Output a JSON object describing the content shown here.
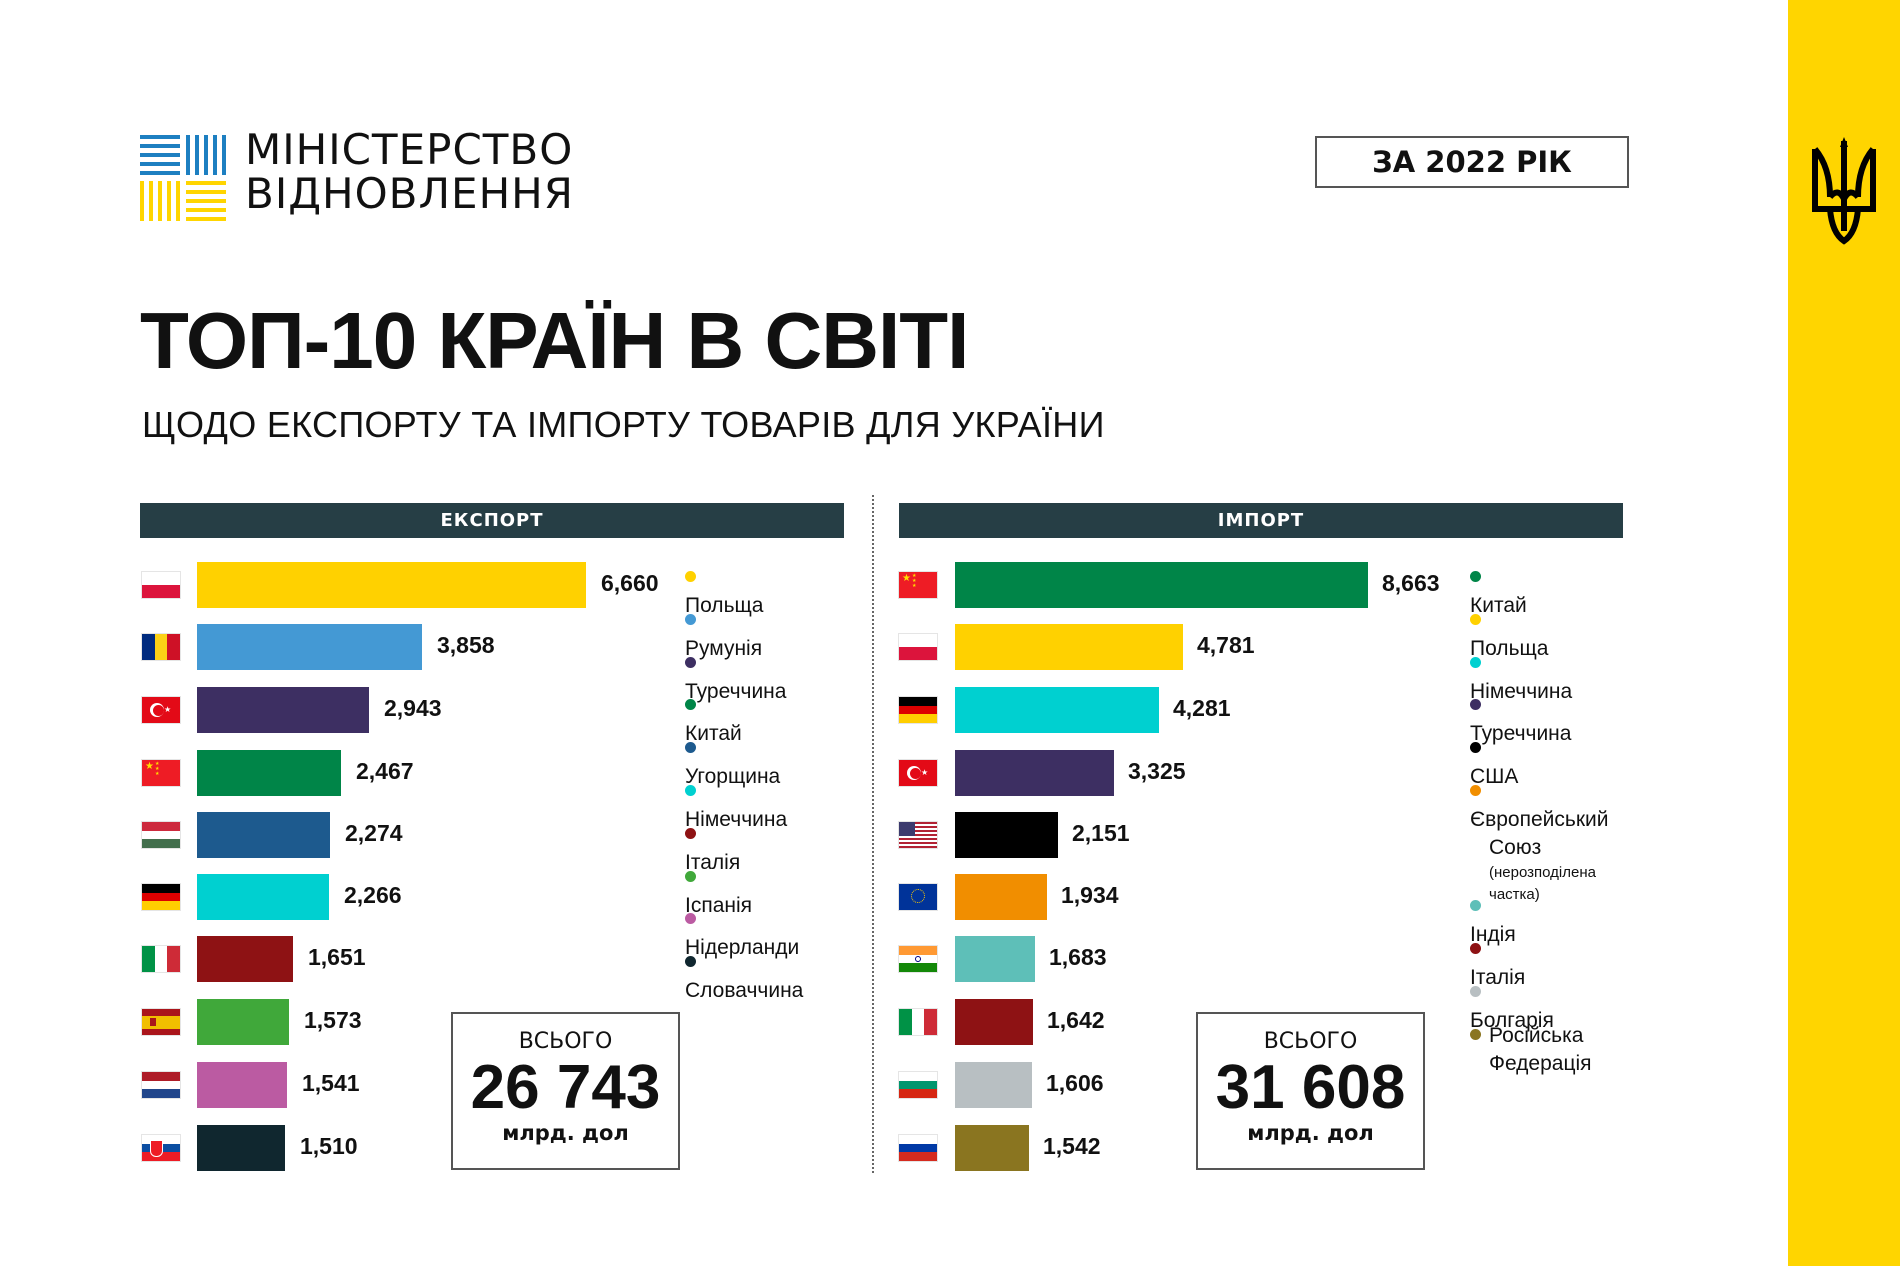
{
  "header": {
    "logo_line1": "МІНІСТЕРСТВО",
    "logo_line2": "ВІДНОВЛЕННЯ",
    "year_badge": "ЗА 2022 РІК",
    "title": "ТОП-10 КРАЇН В СВІТІ",
    "subtitle": "ЩОДО ЕКСПОРТУ ТА ІМПОРТУ ТОВАРІВ ДЛЯ УКРАЇНИ"
  },
  "colors": {
    "brand_yellow": "#FFD500",
    "brand_blue": "#1D7FC1",
    "header_bar": "#263E45"
  },
  "export": {
    "header": "ЕКСПОРТ",
    "total_label": "ВСЬОГО",
    "total_value": "26 743",
    "total_unit": "млрд. дол",
    "rows": [
      {
        "country": "Польща",
        "value": "6,660",
        "num": 6660,
        "color": "#FFD100",
        "flag": "poland"
      },
      {
        "country": "Румунія",
        "value": "3,858",
        "num": 3858,
        "color": "#4499D4",
        "flag": "romania"
      },
      {
        "country": "Туреччина",
        "value": "2,943",
        "num": 2943,
        "color": "#3D2F62",
        "flag": "turkey"
      },
      {
        "country": "Китай",
        "value": "2,467",
        "num": 2467,
        "color": "#008548",
        "flag": "china"
      },
      {
        "country": "Угорщина",
        "value": "2,274",
        "num": 2274,
        "color": "#1D5A8E",
        "flag": "hungary"
      },
      {
        "country": "Німеччина",
        "value": "2,266",
        "num": 2266,
        "color": "#00D0D0",
        "flag": "germany"
      },
      {
        "country": "Італія",
        "value": "1,651",
        "num": 1651,
        "color": "#8E1214",
        "flag": "italy"
      },
      {
        "country": "Іспанія",
        "value": "1,573",
        "num": 1573,
        "color": "#40A83A",
        "flag": "spain"
      },
      {
        "country": "Нідерланди",
        "value": "1,541",
        "num": 1541,
        "color": "#BB5BA2",
        "flag": "netherlands"
      },
      {
        "country": "Словаччина",
        "value": "1,510",
        "num": 1510,
        "color": "#10272F",
        "flag": "slovakia"
      }
    ]
  },
  "import": {
    "header": "ІМПОРТ",
    "total_label": "ВСЬОГО",
    "total_value": "31 608",
    "total_unit": "млрд. дол",
    "rows": [
      {
        "country": "Китай",
        "value": "8,663",
        "num": 8663,
        "color": "#008548",
        "flag": "china"
      },
      {
        "country": "Польща",
        "value": "4,781",
        "num": 4781,
        "color": "#FFD100",
        "flag": "poland"
      },
      {
        "country": "Німеччина",
        "value": "4,281",
        "num": 4281,
        "color": "#00D0D0",
        "flag": "germany"
      },
      {
        "country": "Туреччина",
        "value": "3,325",
        "num": 3325,
        "color": "#3D2F62",
        "flag": "turkey"
      },
      {
        "country": "США",
        "value": "2,151",
        "num": 2151,
        "color": "#000000",
        "flag": "usa"
      },
      {
        "country": "Європейський Союз",
        "country_line1": "Європейський",
        "country_line2": "Союз",
        "note": "(нерозподілена частка)",
        "value": "1,934",
        "num": 1934,
        "color": "#F18E00",
        "flag": "eu"
      },
      {
        "country": "Індія",
        "value": "1,683",
        "num": 1683,
        "color": "#5EBFB8",
        "flag": "india"
      },
      {
        "country": "Італія",
        "value": "1,642",
        "num": 1642,
        "color": "#8E1214",
        "flag": "italy"
      },
      {
        "country": "Болгарія",
        "value": "1,606",
        "num": 1606,
        "color": "#B8BFC2",
        "flag": "bulgaria"
      },
      {
        "country": "Російська Федерація",
        "country_line1": "Російська",
        "country_line2": "Федерація",
        "value": "1,542",
        "num": 1542,
        "color": "#8A7520",
        "flag": "russia"
      }
    ]
  },
  "chart_data": [
    {
      "type": "bar",
      "orientation": "horizontal",
      "title": "ЕКСПОРТ",
      "unit": "млрд. дол",
      "categories": [
        "Польща",
        "Румунія",
        "Туреччина",
        "Китай",
        "Угорщина",
        "Німеччина",
        "Італія",
        "Іспанія",
        "Нідерланди",
        "Словаччина"
      ],
      "values": [
        6.66,
        3.858,
        2.943,
        2.467,
        2.274,
        2.266,
        1.651,
        1.573,
        1.541,
        1.51
      ],
      "value_labels": [
        "6,660",
        "3,858",
        "2,943",
        "2,467",
        "2,274",
        "2,266",
        "1,651",
        "1,573",
        "1,541",
        "1,510"
      ],
      "total": "26 743",
      "legend_position": "right",
      "grid": false
    },
    {
      "type": "bar",
      "orientation": "horizontal",
      "title": "ІМПОРТ",
      "unit": "млрд. дол",
      "categories": [
        "Китай",
        "Польща",
        "Німеччина",
        "Туреччина",
        "США",
        "Європейський Союз (нерозподілена частка)",
        "Індія",
        "Італія",
        "Болгарія",
        "Російська Федерація"
      ],
      "values": [
        8.663,
        4.781,
        4.281,
        3.325,
        2.151,
        1.934,
        1.683,
        1.642,
        1.606,
        1.542
      ],
      "value_labels": [
        "8,663",
        "4,781",
        "4,281",
        "3,325",
        "2,151",
        "1,934",
        "1,683",
        "1,642",
        "1,606",
        "1,542"
      ],
      "total": "31 608",
      "legend_position": "right",
      "grid": false
    }
  ]
}
